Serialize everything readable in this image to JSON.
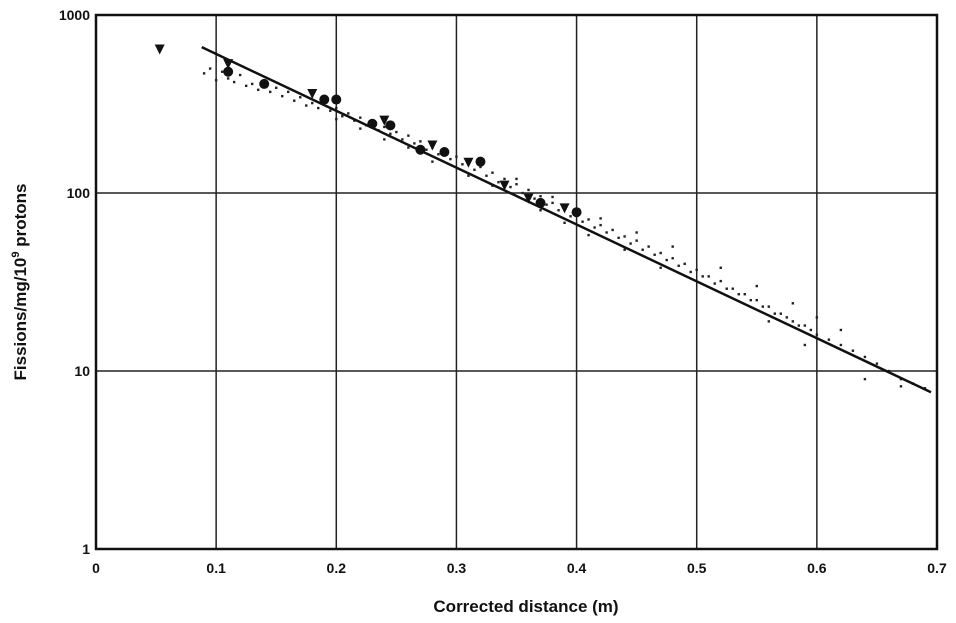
{
  "chart_data": {
    "type": "scatter",
    "title": "",
    "xlabel": "Corrected distance (m)",
    "ylabel": "Fissions/mg/10",
    "ylabel_superscript": "9",
    "ylabel_suffix": " protons",
    "xlim": [
      0,
      0.7
    ],
    "ylim": [
      1,
      1000
    ],
    "yscale": "log",
    "grid": true,
    "x_ticks": [
      0,
      0.1,
      0.2,
      0.3,
      0.4,
      0.5,
      0.6,
      0.7
    ],
    "x_tick_labels": [
      "0",
      "0.1",
      "0.2",
      "0.3",
      "0.4",
      "0.5",
      "0.6",
      "0.7"
    ],
    "y_ticks": [
      1,
      10,
      100,
      1000
    ],
    "y_tick_labels": [
      "1",
      "10",
      "100",
      "1000"
    ],
    "fit_line": {
      "x": [
        0.088,
        0.695
      ],
      "y": [
        660,
        7.6
      ]
    },
    "series": [
      {
        "marker": "dot",
        "points": [
          [
            0.09,
            470
          ],
          [
            0.095,
            500
          ],
          [
            0.1,
            430
          ],
          [
            0.105,
            480
          ],
          [
            0.11,
            440
          ],
          [
            0.115,
            420
          ],
          [
            0.12,
            460
          ],
          [
            0.125,
            400
          ],
          [
            0.13,
            410
          ],
          [
            0.135,
            380
          ],
          [
            0.14,
            420
          ],
          [
            0.145,
            370
          ],
          [
            0.15,
            390
          ],
          [
            0.155,
            350
          ],
          [
            0.16,
            370
          ],
          [
            0.165,
            330
          ],
          [
            0.17,
            345
          ],
          [
            0.175,
            310
          ],
          [
            0.18,
            320
          ],
          [
            0.185,
            300
          ],
          [
            0.19,
            330
          ],
          [
            0.195,
            290
          ],
          [
            0.2,
            300
          ],
          [
            0.205,
            270
          ],
          [
            0.21,
            280
          ],
          [
            0.215,
            255
          ],
          [
            0.22,
            265
          ],
          [
            0.225,
            240
          ],
          [
            0.23,
            250
          ],
          [
            0.235,
            225
          ],
          [
            0.24,
            235
          ],
          [
            0.245,
            215
          ],
          [
            0.25,
            220
          ],
          [
            0.255,
            200
          ],
          [
            0.26,
            210
          ],
          [
            0.265,
            190
          ],
          [
            0.27,
            195
          ],
          [
            0.275,
            175
          ],
          [
            0.28,
            180
          ],
          [
            0.285,
            165
          ],
          [
            0.29,
            170
          ],
          [
            0.295,
            155
          ],
          [
            0.3,
            160
          ],
          [
            0.305,
            145
          ],
          [
            0.31,
            150
          ],
          [
            0.315,
            135
          ],
          [
            0.32,
            140
          ],
          [
            0.325,
            125
          ],
          [
            0.33,
            130
          ],
          [
            0.335,
            115
          ],
          [
            0.34,
            120
          ],
          [
            0.345,
            108
          ],
          [
            0.35,
            112
          ],
          [
            0.355,
            100
          ],
          [
            0.36,
            104
          ],
          [
            0.365,
            93
          ],
          [
            0.37,
            96
          ],
          [
            0.375,
            86
          ],
          [
            0.38,
            88
          ],
          [
            0.385,
            80
          ],
          [
            0.39,
            82
          ],
          [
            0.395,
            74
          ],
          [
            0.4,
            76
          ],
          [
            0.405,
            69
          ],
          [
            0.41,
            71
          ],
          [
            0.415,
            64
          ],
          [
            0.42,
            66
          ],
          [
            0.425,
            60
          ],
          [
            0.43,
            62
          ],
          [
            0.435,
            56
          ],
          [
            0.44,
            57
          ],
          [
            0.445,
            52
          ],
          [
            0.45,
            54
          ],
          [
            0.455,
            48
          ],
          [
            0.46,
            50
          ],
          [
            0.465,
            45
          ],
          [
            0.47,
            46
          ],
          [
            0.475,
            42
          ],
          [
            0.48,
            43
          ],
          [
            0.485,
            39
          ],
          [
            0.49,
            40
          ],
          [
            0.495,
            36
          ],
          [
            0.5,
            37
          ],
          [
            0.505,
            34
          ],
          [
            0.51,
            34
          ],
          [
            0.515,
            31
          ],
          [
            0.52,
            32
          ],
          [
            0.525,
            29
          ],
          [
            0.53,
            29
          ],
          [
            0.535,
            27
          ],
          [
            0.54,
            27
          ],
          [
            0.545,
            25
          ],
          [
            0.55,
            25
          ],
          [
            0.555,
            23
          ],
          [
            0.56,
            23
          ],
          [
            0.565,
            21
          ],
          [
            0.57,
            21
          ],
          [
            0.575,
            20
          ],
          [
            0.58,
            19
          ],
          [
            0.585,
            18
          ],
          [
            0.59,
            18
          ],
          [
            0.595,
            17
          ],
          [
            0.6,
            16
          ],
          [
            0.61,
            15
          ],
          [
            0.62,
            14
          ],
          [
            0.63,
            13
          ],
          [
            0.64,
            12
          ],
          [
            0.65,
            11
          ],
          [
            0.66,
            10
          ],
          [
            0.67,
            9
          ],
          [
            0.68,
            8.5
          ],
          [
            0.69,
            8
          ],
          [
            0.35,
            120
          ],
          [
            0.38,
            95
          ],
          [
            0.42,
            72
          ],
          [
            0.45,
            60
          ],
          [
            0.48,
            50
          ],
          [
            0.52,
            38
          ],
          [
            0.55,
            30
          ],
          [
            0.58,
            24
          ],
          [
            0.6,
            20
          ],
          [
            0.62,
            17
          ],
          [
            0.64,
            9
          ],
          [
            0.67,
            8.2
          ],
          [
            0.59,
            14
          ],
          [
            0.56,
            19
          ],
          [
            0.47,
            38
          ],
          [
            0.44,
            48
          ],
          [
            0.41,
            58
          ],
          [
            0.39,
            68
          ],
          [
            0.37,
            80
          ],
          [
            0.33,
            110
          ],
          [
            0.31,
            125
          ],
          [
            0.28,
            150
          ],
          [
            0.26,
            180
          ],
          [
            0.24,
            200
          ],
          [
            0.22,
            230
          ],
          [
            0.2,
            260
          ]
        ]
      },
      {
        "marker": "circle",
        "points": [
          [
            0.11,
            480
          ],
          [
            0.14,
            410
          ],
          [
            0.19,
            335
          ],
          [
            0.2,
            335
          ],
          [
            0.23,
            245
          ],
          [
            0.245,
            240
          ],
          [
            0.27,
            175
          ],
          [
            0.29,
            170
          ],
          [
            0.32,
            150
          ],
          [
            0.37,
            88
          ],
          [
            0.4,
            78
          ]
        ]
      },
      {
        "marker": "triangle-down",
        "points": [
          [
            0.053,
            640
          ],
          [
            0.11,
            530
          ],
          [
            0.18,
            360
          ],
          [
            0.24,
            255
          ],
          [
            0.28,
            185
          ],
          [
            0.31,
            148
          ],
          [
            0.34,
            110
          ],
          [
            0.36,
            93
          ],
          [
            0.39,
            82
          ]
        ]
      }
    ]
  }
}
